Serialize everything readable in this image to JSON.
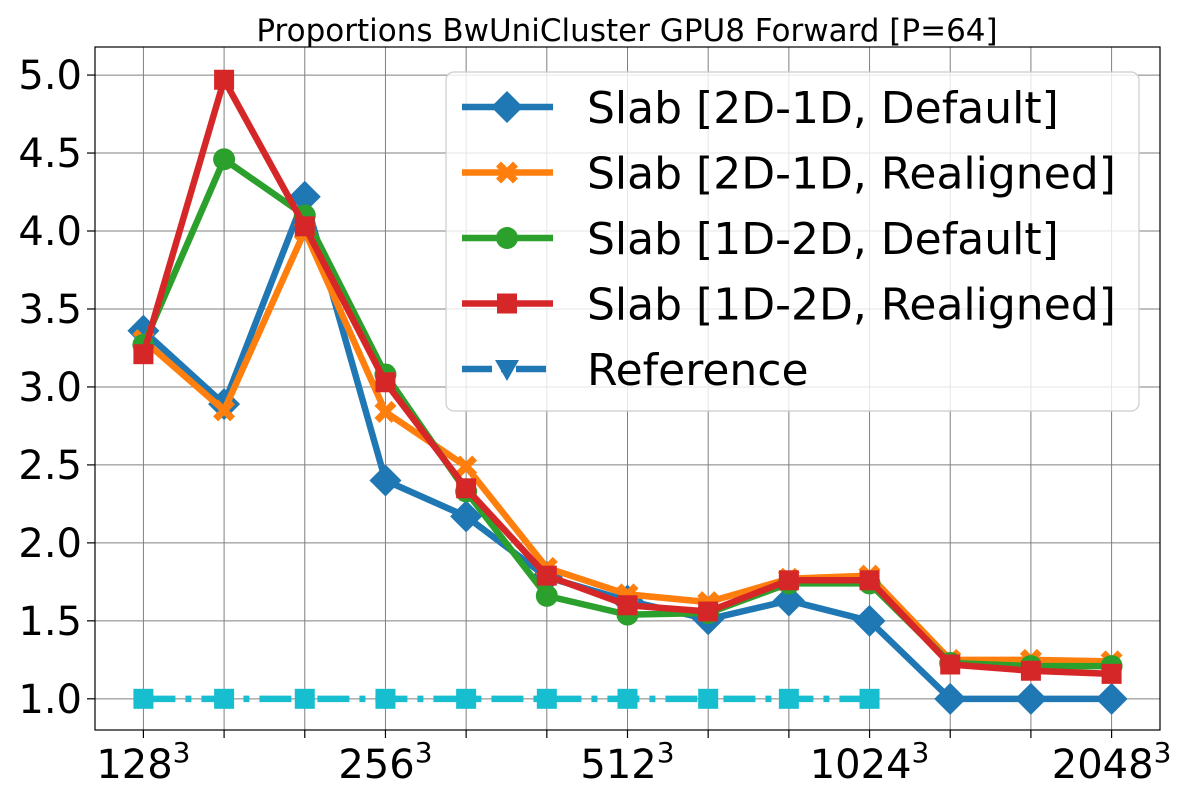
{
  "chart_data": {
    "type": "line",
    "title": "Proportions BwUniCluster GPU8 Forward [P=64]",
    "xlabel": "",
    "ylabel": "",
    "x": [
      1,
      2,
      3,
      4,
      5,
      6,
      7,
      8,
      9,
      10,
      11,
      12,
      13
    ],
    "xlim": [
      0.4,
      13.6
    ],
    "ylim": [
      0.8,
      5.18
    ],
    "xtick_positions": [
      1,
      2,
      3,
      4,
      5,
      6,
      7,
      8,
      9,
      10,
      11,
      12,
      13
    ],
    "xtick_labels": [
      {
        "base": "128",
        "sup": "3"
      },
      {
        "base": "",
        "sup": ""
      },
      {
        "base": "",
        "sup": ""
      },
      {
        "base": "256",
        "sup": "3"
      },
      {
        "base": "",
        "sup": ""
      },
      {
        "base": "",
        "sup": ""
      },
      {
        "base": "512",
        "sup": "3"
      },
      {
        "base": "",
        "sup": ""
      },
      {
        "base": "",
        "sup": ""
      },
      {
        "base": "1024",
        "sup": "3"
      },
      {
        "base": "",
        "sup": ""
      },
      {
        "base": "",
        "sup": ""
      },
      {
        "base": "2048",
        "sup": "3"
      }
    ],
    "yticks": [
      1.0,
      1.5,
      2.0,
      2.5,
      3.0,
      3.5,
      4.0,
      4.5,
      5.0
    ],
    "ytick_labels": [
      "1.0",
      "1.5",
      "2.0",
      "2.5",
      "3.0",
      "3.5",
      "4.0",
      "4.5",
      "5.0"
    ],
    "grid": true,
    "legend_position": "top-right",
    "series": [
      {
        "name": "Slab [2D-1D, Default]",
        "color": "#1f77b4",
        "marker": "diamond",
        "linestyle": "solid",
        "values": [
          3.36,
          2.89,
          4.22,
          2.4,
          2.17,
          1.78,
          1.63,
          1.51,
          1.63,
          1.5,
          1.0,
          1.0,
          1.0
        ]
      },
      {
        "name": "Slab [2D-1D, Realigned]",
        "color": "#ff7f0e",
        "marker": "x",
        "linestyle": "solid",
        "values": [
          3.3,
          2.85,
          4.0,
          2.84,
          2.49,
          1.84,
          1.67,
          1.62,
          1.77,
          1.79,
          1.25,
          1.25,
          1.24
        ]
      },
      {
        "name": "Slab [1D-2D, Default]",
        "color": "#2ca02c",
        "marker": "circle",
        "linestyle": "solid",
        "values": [
          3.27,
          4.46,
          4.1,
          3.08,
          2.33,
          1.66,
          1.54,
          1.55,
          1.74,
          1.74,
          1.23,
          1.21,
          1.21
        ]
      },
      {
        "name": "Slab [1D-2D, Realigned]",
        "color": "#d62728",
        "marker": "square",
        "linestyle": "solid",
        "values": [
          3.21,
          4.97,
          4.03,
          3.03,
          2.35,
          1.79,
          1.6,
          1.56,
          1.76,
          1.76,
          1.22,
          1.18,
          1.16
        ]
      },
      {
        "name": "Reference",
        "color": "#17becf",
        "legend_color": "#1f77b4",
        "marker": "triangle-down",
        "linestyle": "dashdot",
        "values": [
          1.0,
          1.0,
          1.0,
          1.0,
          1.0,
          1.0,
          1.0,
          1.0,
          1.0,
          1.0,
          null,
          null,
          null
        ]
      }
    ]
  }
}
